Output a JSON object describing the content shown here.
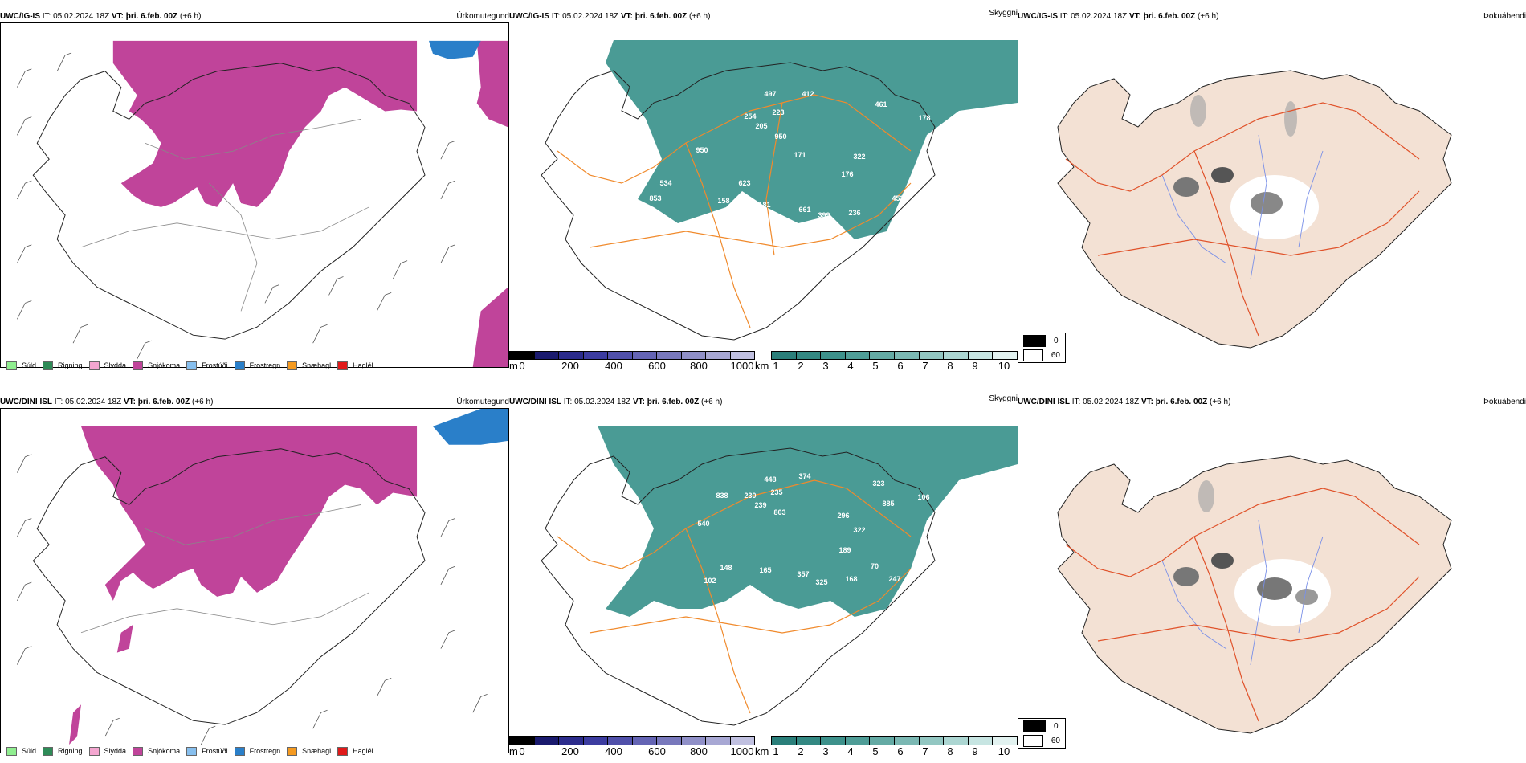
{
  "rows": [
    {
      "model": "UWC/IG-IS",
      "it_label": "IT:",
      "it_value": "05.02.2024 18Z",
      "vt_label": "VT:",
      "vt_value": "þri. 6.feb. 00Z",
      "lead": "(+6 h)",
      "mountain_labels": [
        "497",
        "412",
        "461",
        "254",
        "223",
        "205",
        "950",
        "178",
        "950",
        "171",
        "322",
        "534",
        "623",
        "176",
        "853",
        "158",
        "181",
        "661",
        "399",
        "236",
        "453"
      ]
    },
    {
      "model": "UWC/DINI ISL",
      "it_label": "IT:",
      "it_value": "05.02.2024 18Z",
      "vt_label": "VT:",
      "vt_value": "þri. 6.feb. 00Z",
      "lead": "(+6 h)",
      "mountain_labels": [
        "448",
        "374",
        "323",
        "838",
        "230",
        "235",
        "106",
        "239",
        "885",
        "803",
        "540",
        "296",
        "322",
        "189",
        "148",
        "165",
        "357",
        "325",
        "168",
        "70",
        "102",
        "247"
      ]
    }
  ],
  "titles": {
    "precip": "Úrkomutegund",
    "visibility": "Skyggni",
    "fog": "Þokuábendi"
  },
  "precip_legend": [
    {
      "label": "Súld",
      "color": "#90ee90"
    },
    {
      "label": "Rigning",
      "color": "#2e8b57"
    },
    {
      "label": "Slydda",
      "color": "#f4a6d0"
    },
    {
      "label": "Snjókoma",
      "color": "#c0449a"
    },
    {
      "label": "Frostúði",
      "color": "#87bfee"
    },
    {
      "label": "Frostregn",
      "color": "#2a7fc9"
    },
    {
      "label": "Snæhagl",
      "color": "#f59a20"
    },
    {
      "label": "Haglél",
      "color": "#e01a1a"
    }
  ],
  "cloud_base_bar": {
    "unit": "m",
    "ticks": [
      "0",
      "200",
      "400",
      "600",
      "800",
      "1000"
    ],
    "colors": [
      "#000000",
      "#1a1a6e",
      "#2c2c8c",
      "#3c3ca0",
      "#5050aa",
      "#6464b4",
      "#7878bc",
      "#9090c8",
      "#a8a8d4",
      "#c0c0e0"
    ]
  },
  "visibility_bar": {
    "unit": "km",
    "ticks": [
      "1",
      "2",
      "3",
      "4",
      "5",
      "6",
      "7",
      "8",
      "9",
      "10"
    ],
    "colors": [
      "#2a7f7a",
      "#338882",
      "#3d918b",
      "#4f9d97",
      "#64aaa4",
      "#7bb8b3",
      "#93c7c2",
      "#acd6d2",
      "#c7e5e2",
      "#e2f2f0"
    ]
  },
  "fog_legend": [
    {
      "label": "0",
      "color": "#000000"
    },
    {
      "label": "60",
      "color": "#ffffff"
    }
  ],
  "colors": {
    "snow": "#c0449a",
    "frz_rain": "#2a7fc9",
    "land_fog": "#f3e1d4",
    "teal": "#2a8a82",
    "roads": "#f08a2c",
    "roads_fog": "#e0522a",
    "rivers": "#7a90e8"
  }
}
